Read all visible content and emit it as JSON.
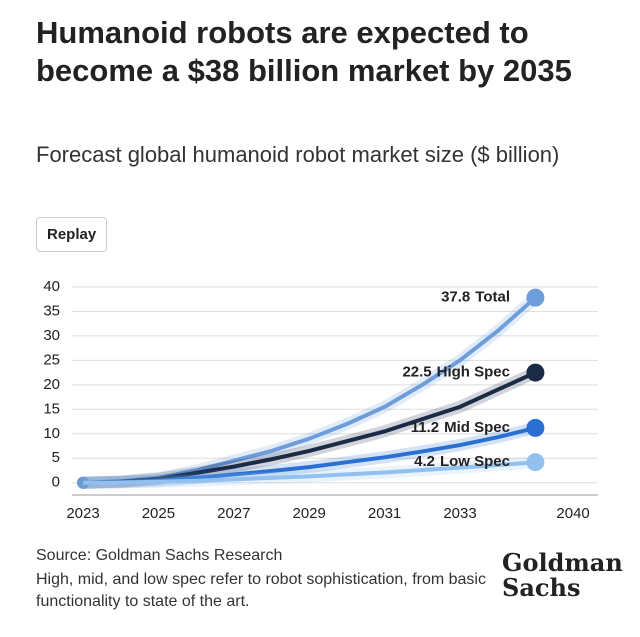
{
  "chart_data": {
    "type": "line",
    "title": "Humanoid robots are expected to become a $38 billion market by 2035",
    "subtitle": "Forecast global humanoid robot market size ($ billion)",
    "button": "Replay",
    "categories": [
      "2023",
      null,
      "2025",
      null,
      "2027",
      null,
      "2029",
      null,
      "2031",
      null,
      "2033",
      null,
      null,
      "2040"
    ],
    "series": [
      {
        "name": "Total",
        "color": "#6d9ddb",
        "values": [
          0,
          0.3,
          1,
          2.5,
          4.5,
          6.5,
          9,
          12,
          15.5,
          20,
          25,
          31,
          37.8,
          null
        ]
      },
      {
        "name": "High Spec",
        "color": "#1b2a45",
        "values": [
          0,
          0.2,
          0.8,
          2,
          3.3,
          4.8,
          6.5,
          8.5,
          10.5,
          13,
          15.5,
          19,
          22.5,
          null
        ]
      },
      {
        "name": "Mid Spec",
        "color": "#2a6fd1",
        "values": [
          0,
          0.1,
          0.4,
          1,
          1.7,
          2.4,
          3.2,
          4.2,
          5.2,
          6.4,
          7.7,
          9.3,
          11.2,
          null
        ]
      },
      {
        "name": "Low Spec",
        "color": "#92c1f0",
        "values": [
          0,
          0.05,
          0.2,
          0.4,
          0.7,
          1,
          1.3,
          1.7,
          2.1,
          2.6,
          3.1,
          3.6,
          4.2,
          null
        ]
      }
    ],
    "ylim": [
      -2.5,
      41
    ],
    "yticks": [
      0,
      5,
      10,
      15,
      20,
      25,
      30,
      35,
      40
    ],
    "grid": true,
    "source": "Source: Goldman Sachs Research",
    "note": "High, mid, and low spec refer to robot sophistication, from basic functionality to state of the art.",
    "logo": [
      "Goldman",
      "Sachs"
    ]
  }
}
